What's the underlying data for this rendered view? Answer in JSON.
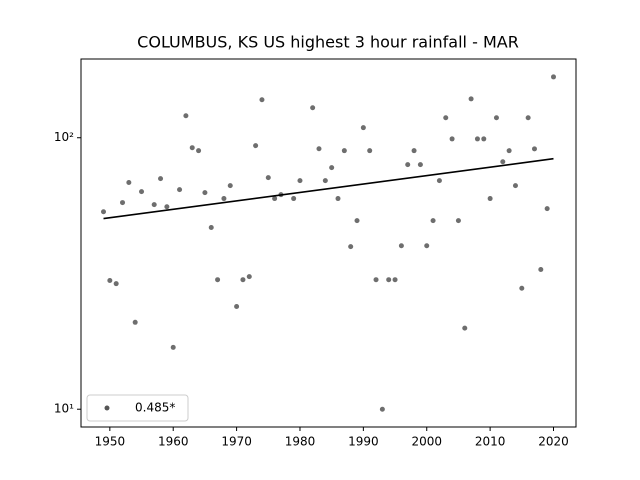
{
  "chart_data": {
    "type": "scatter",
    "title": "COLUMBUS, KS US highest 3 hour rainfall - MAR",
    "log_y": true,
    "legend_loc": "lower left",
    "series": [
      {
        "name": "0.485*",
        "color": "#555555",
        "x": [
          1949,
          1950,
          1951,
          1952,
          1953,
          1954,
          1955,
          1957,
          1958,
          1959,
          1960,
          1961,
          1962,
          1963,
          1964,
          1965,
          1966,
          1967,
          1968,
          1969,
          1970,
          1971,
          1972,
          1973,
          1974,
          1975,
          1976,
          1977,
          1979,
          1980,
          1982,
          1983,
          1984,
          1985,
          1986,
          1987,
          1988,
          1989,
          1990,
          1991,
          1992,
          1993,
          1994,
          1995,
          1996,
          1997,
          1998,
          1999,
          2000,
          2001,
          2002,
          2003,
          2004,
          2005,
          2006,
          2007,
          2008,
          2009,
          2010,
          2011,
          2012,
          2013,
          2014,
          2015,
          2016,
          2017,
          2018,
          2019,
          2020
        ],
        "values": [
          53.4,
          29.8,
          29,
          57.7,
          68.4,
          20.9,
          63.3,
          56.7,
          70.7,
          55.7,
          16.9,
          64.4,
          120.5,
          91.9,
          89.6,
          62.8,
          46.7,
          30,
          59.7,
          66.6,
          23.9,
          30,
          30.8,
          93.5,
          138,
          71.3,
          59.7,
          61.7,
          59.7,
          69.5,
          129,
          91.1,
          69.5,
          77.6,
          59.7,
          89.6,
          39.7,
          49.5,
          108.9,
          89.6,
          30,
          10,
          30,
          30,
          40,
          79.6,
          89.6,
          79.6,
          40,
          49.5,
          69.5,
          118.5,
          99,
          49.5,
          19.9,
          139,
          99,
          99,
          59.7,
          118.5,
          81.6,
          89.6,
          66.6,
          27.9,
          118.5,
          91,
          32.7,
          54.8,
          167.5
        ]
      }
    ],
    "trend": {
      "x": [
        1949,
        2020
      ],
      "values": [
        50.4,
        83.7
      ],
      "color": "#000000"
    },
    "xlim": [
      1945.45,
      2023.55
    ],
    "ylim": [
      8.6,
      195
    ],
    "xticks": [
      1950,
      1960,
      1970,
      1980,
      1990,
      2000,
      2010,
      2020
    ],
    "yticks": [
      {
        "value": 10,
        "label": "10¹"
      },
      {
        "value": 100,
        "label": "10²"
      }
    ]
  }
}
